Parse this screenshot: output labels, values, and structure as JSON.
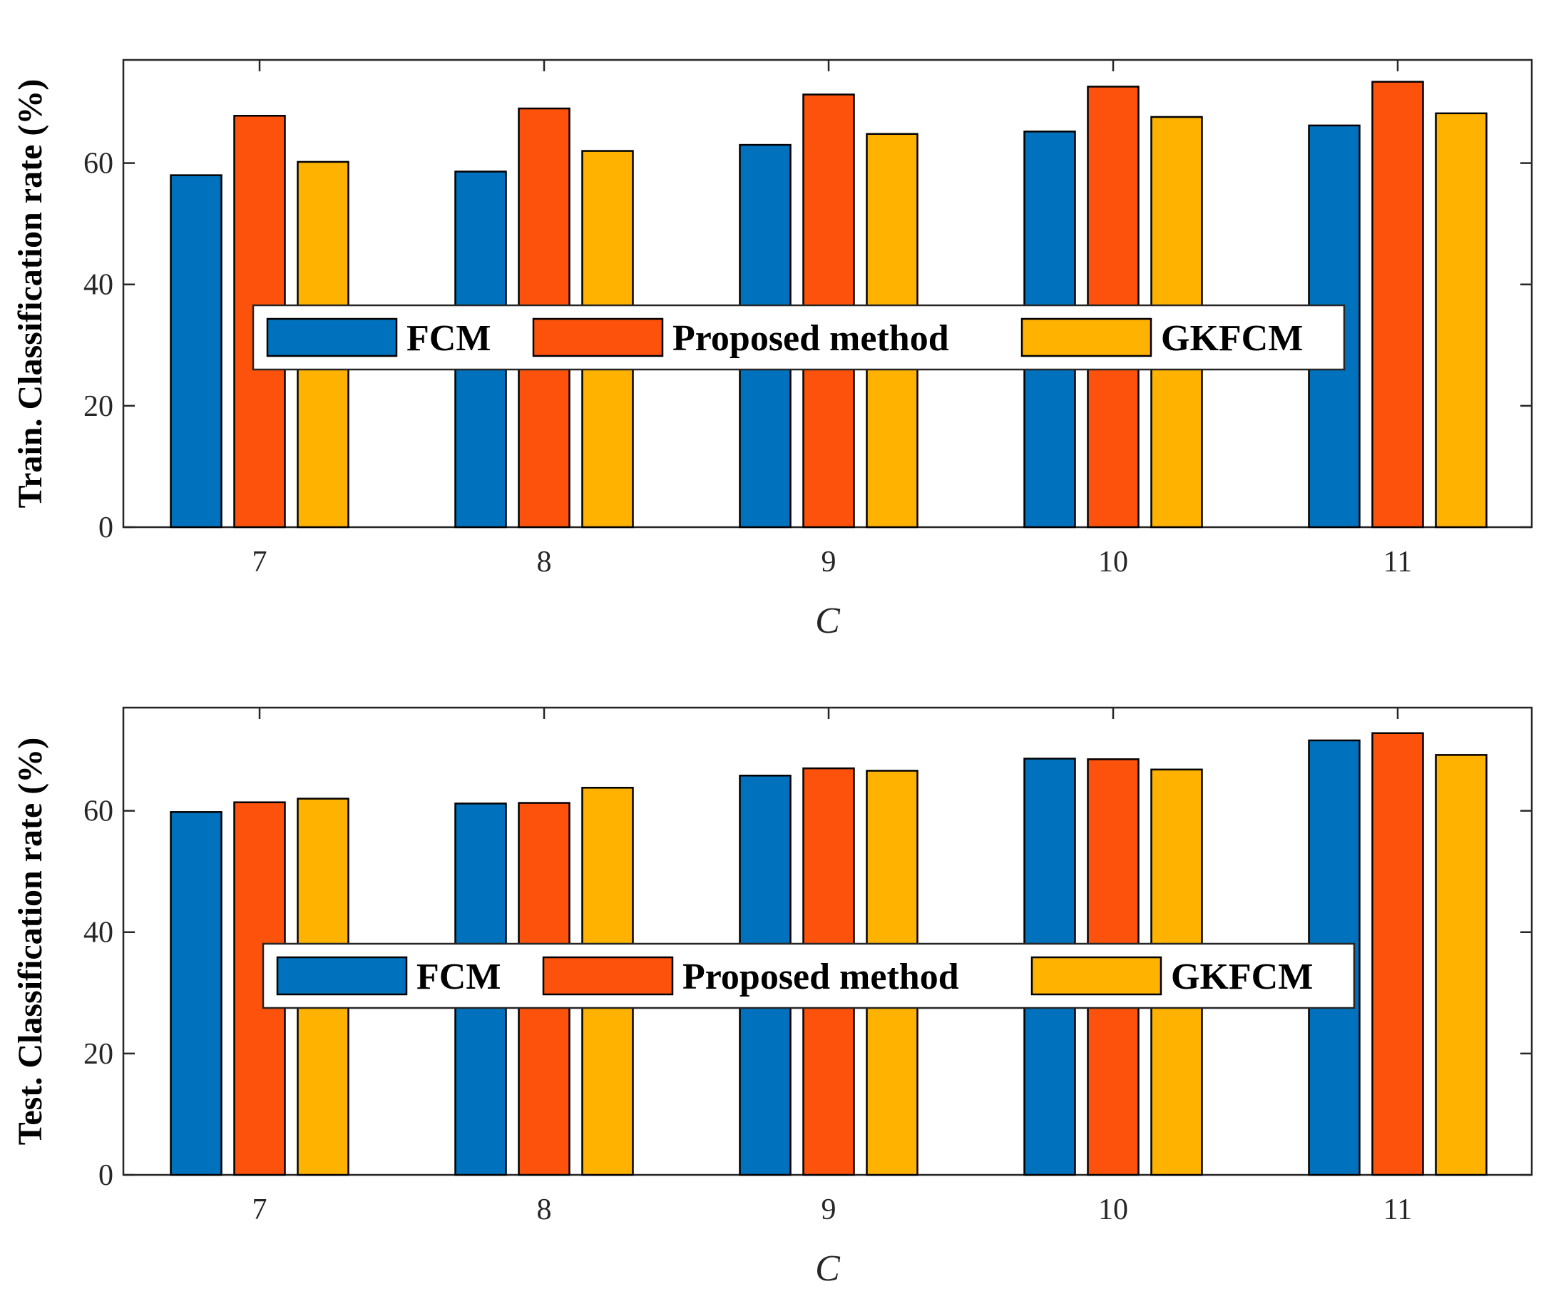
{
  "chart_data": [
    {
      "type": "bar",
      "title": "",
      "xlabel": "C",
      "ylabel": "Train. Classification rate (%)",
      "categories": [
        "7",
        "8",
        "9",
        "10",
        "11"
      ],
      "ylim": [
        0,
        77
      ],
      "yticks": [
        0,
        20,
        40,
        60
      ],
      "ytick_labels": [
        "0",
        "20",
        "40",
        "60"
      ],
      "grid": false,
      "legend_position": "center",
      "series": [
        {
          "name": "FCM",
          "color": "#0072BD",
          "values": [
            58,
            58.6,
            63,
            65.2,
            66.2
          ]
        },
        {
          "name": "Proposed method",
          "color": "#FC520B",
          "values": [
            67.8,
            69,
            71.3,
            72.6,
            73.4
          ]
        },
        {
          "name": "GKFCM",
          "color": "#FFB200",
          "values": [
            60.2,
            62,
            64.8,
            67.6,
            68.2
          ]
        }
      ]
    },
    {
      "type": "bar",
      "title": "",
      "xlabel": "C",
      "ylabel": "Test. Classification rate (%)",
      "categories": [
        "7",
        "8",
        "9",
        "10",
        "11"
      ],
      "ylim": [
        0,
        77
      ],
      "yticks": [
        0,
        20,
        40,
        60
      ],
      "ytick_labels": [
        "0",
        "20",
        "40",
        "60"
      ],
      "grid": false,
      "legend_position": "center",
      "series": [
        {
          "name": "FCM",
          "color": "#0072BD",
          "values": [
            59.8,
            61.2,
            65.8,
            68.6,
            71.6
          ]
        },
        {
          "name": "Proposed method",
          "color": "#FC520B",
          "values": [
            61.4,
            61.3,
            67,
            68.5,
            72.8
          ]
        },
        {
          "name": "GKFCM",
          "color": "#FFB200",
          "values": [
            62,
            63.8,
            66.6,
            66.8,
            69.2
          ]
        }
      ]
    }
  ]
}
